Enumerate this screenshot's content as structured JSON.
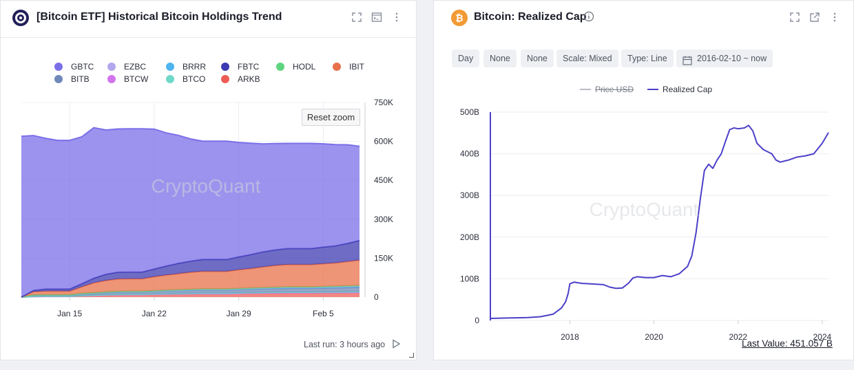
{
  "left_panel": {
    "title": "[Bitcoin ETF] Historical Bitcoin Holdings Trend",
    "reset_zoom_label": "Reset zoom",
    "footer": "Last run: 3 hours ago",
    "watermark": "CryptoQuant",
    "legend": [
      {
        "name": "GBTC",
        "color": "#7b6fe8"
      },
      {
        "name": "EZBC",
        "color": "#b3a7ee"
      },
      {
        "name": "BRRR",
        "color": "#4fb4ef"
      },
      {
        "name": "FBTC",
        "color": "#3d3bb2"
      },
      {
        "name": "HODL",
        "color": "#5fd47f"
      },
      {
        "name": "IBIT",
        "color": "#e8704a"
      },
      {
        "name": "BITB",
        "color": "#7088b8"
      },
      {
        "name": "BTCW",
        "color": "#d275ec"
      },
      {
        "name": "BTCO",
        "color": "#6fd8c8"
      },
      {
        "name": "ARKB",
        "color": "#ee5d55"
      }
    ],
    "icons": [
      "expand-icon",
      "console-icon",
      "more-vertical-icon",
      "play-icon"
    ]
  },
  "right_panel": {
    "title": "Bitcoin: Realized Cap",
    "chips": [
      "Day",
      "None",
      "None",
      "Scale: Mixed",
      "Type: Line",
      "2016-02-10 ~ now"
    ],
    "legend": [
      {
        "name": "Price USD",
        "color": "#b9bcc4",
        "hidden": true
      },
      {
        "name": "Realized Cap",
        "color": "#4b3fc7",
        "hidden": false
      }
    ],
    "last_value": "Last Value: 451.057 B",
    "watermark": "CryptoQuant",
    "icons": [
      "expand-icon",
      "external-link-icon",
      "more-vertical-icon",
      "info-icon",
      "calendar-icon"
    ]
  },
  "chart_data": [
    {
      "type": "area",
      "title": "[Bitcoin ETF] Historical Bitcoin Holdings Trend",
      "stacked": true,
      "x_ticks": [
        "Jan 15",
        "Jan 22",
        "Jan 29",
        "Feb 5"
      ],
      "x": [
        "2024-01-11",
        "2024-01-12",
        "2024-01-13",
        "2024-01-14",
        "2024-01-15",
        "2024-01-16",
        "2024-01-17",
        "2024-01-18",
        "2024-01-19",
        "2024-01-20",
        "2024-01-21",
        "2024-01-22",
        "2024-01-23",
        "2024-01-24",
        "2024-01-25",
        "2024-01-26",
        "2024-01-27",
        "2024-01-28",
        "2024-01-29",
        "2024-01-30",
        "2024-01-31",
        "2024-02-01",
        "2024-02-02",
        "2024-02-03",
        "2024-02-04",
        "2024-02-05",
        "2024-02-06",
        "2024-02-07",
        "2024-02-08"
      ],
      "y_right_ticks": [
        "0",
        "150K",
        "300K",
        "450K",
        "600K",
        "750K"
      ],
      "ylim": [
        0,
        750000
      ],
      "series": [
        {
          "name": "ARKB",
          "values": [
            0,
            2000,
            2500,
            2500,
            2500,
            5000,
            6000,
            7500,
            8500,
            9000,
            9000,
            10000,
            11000,
            11500,
            12000,
            12500,
            12500,
            12500,
            13500,
            14500,
            15000,
            15500,
            16000,
            16000,
            16000,
            16500,
            16500,
            17000,
            17500
          ]
        },
        {
          "name": "BTCW",
          "values": [
            0,
            100,
            100,
            100,
            100,
            300,
            300,
            400,
            400,
            400,
            400,
            500,
            500,
            500,
            500,
            500,
            500,
            500,
            600,
            600,
            600,
            600,
            600,
            600,
            600,
            600,
            600,
            600,
            600
          ]
        },
        {
          "name": "BTCO",
          "values": [
            0,
            500,
            500,
            500,
            500,
            900,
            1000,
            1200,
            1300,
            1300,
            1300,
            1400,
            1500,
            1600,
            1700,
            1800,
            1800,
            1800,
            2000,
            2100,
            2200,
            2300,
            2400,
            2400,
            2400,
            2500,
            2600,
            2700,
            2800
          ]
        },
        {
          "name": "BITB",
          "values": [
            0,
            5000,
            5000,
            5000,
            5000,
            7000,
            8000,
            9000,
            9500,
            9500,
            9500,
            10000,
            11000,
            11500,
            12000,
            12500,
            12500,
            12500,
            13000,
            13500,
            14000,
            14500,
            15000,
            15000,
            15000,
            15500,
            16000,
            16500,
            17000
          ]
        },
        {
          "name": "BRRR",
          "values": [
            0,
            300,
            300,
            300,
            300,
            500,
            600,
            800,
            900,
            900,
            900,
            1000,
            1100,
            1200,
            1300,
            1400,
            1400,
            1400,
            1500,
            1600,
            1700,
            1800,
            1900,
            1900,
            1900,
            2000,
            2100,
            2200,
            2300
          ]
        },
        {
          "name": "EZBC",
          "values": [
            0,
            300,
            300,
            300,
            300,
            400,
            500,
            600,
            700,
            700,
            700,
            800,
            900,
            1000,
            1100,
            1200,
            1200,
            1200,
            1300,
            1400,
            1500,
            1600,
            1700,
            1700,
            1700,
            1800,
            1900,
            2000,
            2100
          ]
        },
        {
          "name": "HODL",
          "values": [
            0,
            200,
            200,
            200,
            200,
            300,
            400,
            500,
            600,
            600,
            600,
            700,
            800,
            900,
            1000,
            1100,
            1100,
            1100,
            1200,
            1300,
            1400,
            1500,
            1600,
            1600,
            1600,
            1700,
            1800,
            1900,
            2000
          ]
        },
        {
          "name": "IBIT",
          "values": [
            0,
            12000,
            14000,
            14000,
            14000,
            25000,
            38000,
            44000,
            48000,
            48000,
            48000,
            54000,
            58000,
            62000,
            66000,
            68000,
            68000,
            68000,
            72000,
            75000,
            80000,
            84000,
            86000,
            86000,
            86000,
            88000,
            90000,
            94000,
            98000
          ]
        },
        {
          "name": "FBTC",
          "values": [
            0,
            5000,
            8000,
            8000,
            8000,
            12000,
            18000,
            24000,
            26000,
            26000,
            26000,
            30000,
            35000,
            40000,
            43000,
            46000,
            46000,
            46000,
            50000,
            54000,
            58000,
            60000,
            62000,
            62000,
            62000,
            64000,
            66000,
            70000,
            76000
          ]
        },
        {
          "name": "GBTC",
          "values": [
            620000,
            597000,
            581000,
            573000,
            573000,
            566000,
            580000,
            556000,
            552000,
            552000,
            552000,
            539000,
            513000,
            493000,
            471000,
            456000,
            456000,
            456000,
            441000,
            429000,
            416000,
            410000,
            405000,
            405000,
            405000,
            398000,
            390000,
            380000,
            363000
          ]
        }
      ]
    },
    {
      "type": "line",
      "title": "Bitcoin: Realized Cap",
      "xlabel": "",
      "ylabel": "",
      "x_ticks": [
        "2018",
        "2020",
        "2022",
        "2024"
      ],
      "y_ticks": [
        "0",
        "100B",
        "200B",
        "300B",
        "400B",
        "500B"
      ],
      "ylim": [
        0,
        500
      ],
      "xlim": [
        2016.11,
        2024.15
      ],
      "series": [
        {
          "name": "Realized Cap",
          "x": [
            2016.11,
            2016.5,
            2017.0,
            2017.3,
            2017.6,
            2017.8,
            2017.9,
            2017.96,
            2018.0,
            2018.1,
            2018.3,
            2018.5,
            2018.8,
            2018.95,
            2019.1,
            2019.25,
            2019.4,
            2019.5,
            2019.6,
            2019.8,
            2020.0,
            2020.2,
            2020.4,
            2020.6,
            2020.8,
            2020.9,
            2021.0,
            2021.05,
            2021.1,
            2021.2,
            2021.3,
            2021.35,
            2021.4,
            2021.5,
            2021.6,
            2021.7,
            2021.8,
            2021.9,
            2022.0,
            2022.15,
            2022.25,
            2022.35,
            2022.45,
            2022.6,
            2022.8,
            2022.9,
            2023.0,
            2023.2,
            2023.4,
            2023.6,
            2023.8,
            2024.0,
            2024.15
          ],
          "values": [
            5,
            6,
            7,
            9,
            15,
            30,
            45,
            65,
            88,
            92,
            89,
            88,
            86,
            80,
            77,
            78,
            90,
            102,
            105,
            103,
            103,
            108,
            105,
            112,
            130,
            155,
            210,
            250,
            290,
            360,
            375,
            370,
            365,
            385,
            400,
            430,
            458,
            462,
            460,
            462,
            468,
            455,
            425,
            410,
            400,
            385,
            380,
            385,
            392,
            395,
            400,
            425,
            451.057
          ]
        }
      ]
    }
  ]
}
